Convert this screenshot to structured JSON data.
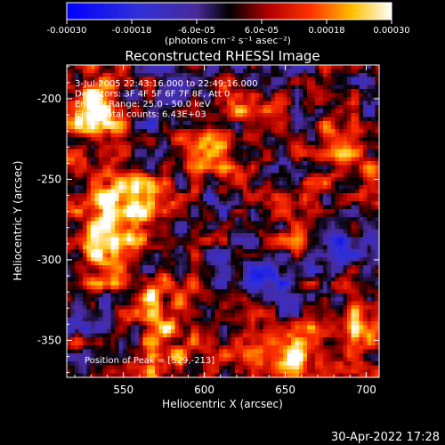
{
  "chart_data": {
    "type": "heatmap",
    "title": "Reconstructed RHESSI Image",
    "xlabel": "Heliocentric X (arcsec)",
    "ylabel": "Heliocentric Y (arcsec)",
    "xlim": [
      515,
      708
    ],
    "ylim": [
      -373,
      -179
    ],
    "x_ticks": [
      550,
      600,
      650,
      700
    ],
    "y_ticks": [
      -200,
      -250,
      -300,
      -350
    ],
    "colorbar": {
      "label": "(photons cm⁻² s⁻¹ asec⁻²)",
      "range": [
        -0.0003,
        0.0003
      ],
      "tick_labels": [
        "-0.00030",
        "-0.00018",
        "-6.0e-05",
        "6.0e-05",
        "0.00018",
        "0.00030"
      ],
      "colormap": "blue-purple-red-yellow-white"
    },
    "annotations": [
      "3-Jul-2005 22:43:16.000 to 22:49:16.000",
      "Detectors: 3F 4F 5F 6F 7F 8F, Att 0",
      "Energy Range: 25.0 - 50.0 keV",
      "Clean     Total counts: 6.43E+03"
    ],
    "peak_label": "Position of Peak = [529,-213]",
    "hotspots": [
      {
        "x": 530,
        "y": -205,
        "value": 0.0003
      },
      {
        "x": 550,
        "y": -262,
        "value": 0.0003
      },
      {
        "x": 538,
        "y": -290,
        "value": 0.00026
      },
      {
        "x": 660,
        "y": -358,
        "value": 0.00024
      },
      {
        "x": 598,
        "y": -232,
        "value": 0.00018
      },
      {
        "x": 570,
        "y": -322,
        "value": 0.00016
      },
      {
        "x": 630,
        "y": -205,
        "value": 0.00014
      },
      {
        "x": 688,
        "y": -235,
        "value": 0.00015
      },
      {
        "x": 690,
        "y": -340,
        "value": 0.00014
      },
      {
        "x": 625,
        "y": -345,
        "value": 0.00012
      },
      {
        "x": 575,
        "y": -355,
        "value": 0.00018
      },
      {
        "x": 655,
        "y": -275,
        "value": 0.0001
      },
      {
        "x": 695,
        "y": -290,
        "value": -0.00012
      },
      {
        "x": 640,
        "y": -310,
        "value": -0.0001
      },
      {
        "x": 580,
        "y": -205,
        "value": -8e-05
      }
    ]
  },
  "footer": {
    "timestamp": "30-Apr-2022 17:28"
  }
}
